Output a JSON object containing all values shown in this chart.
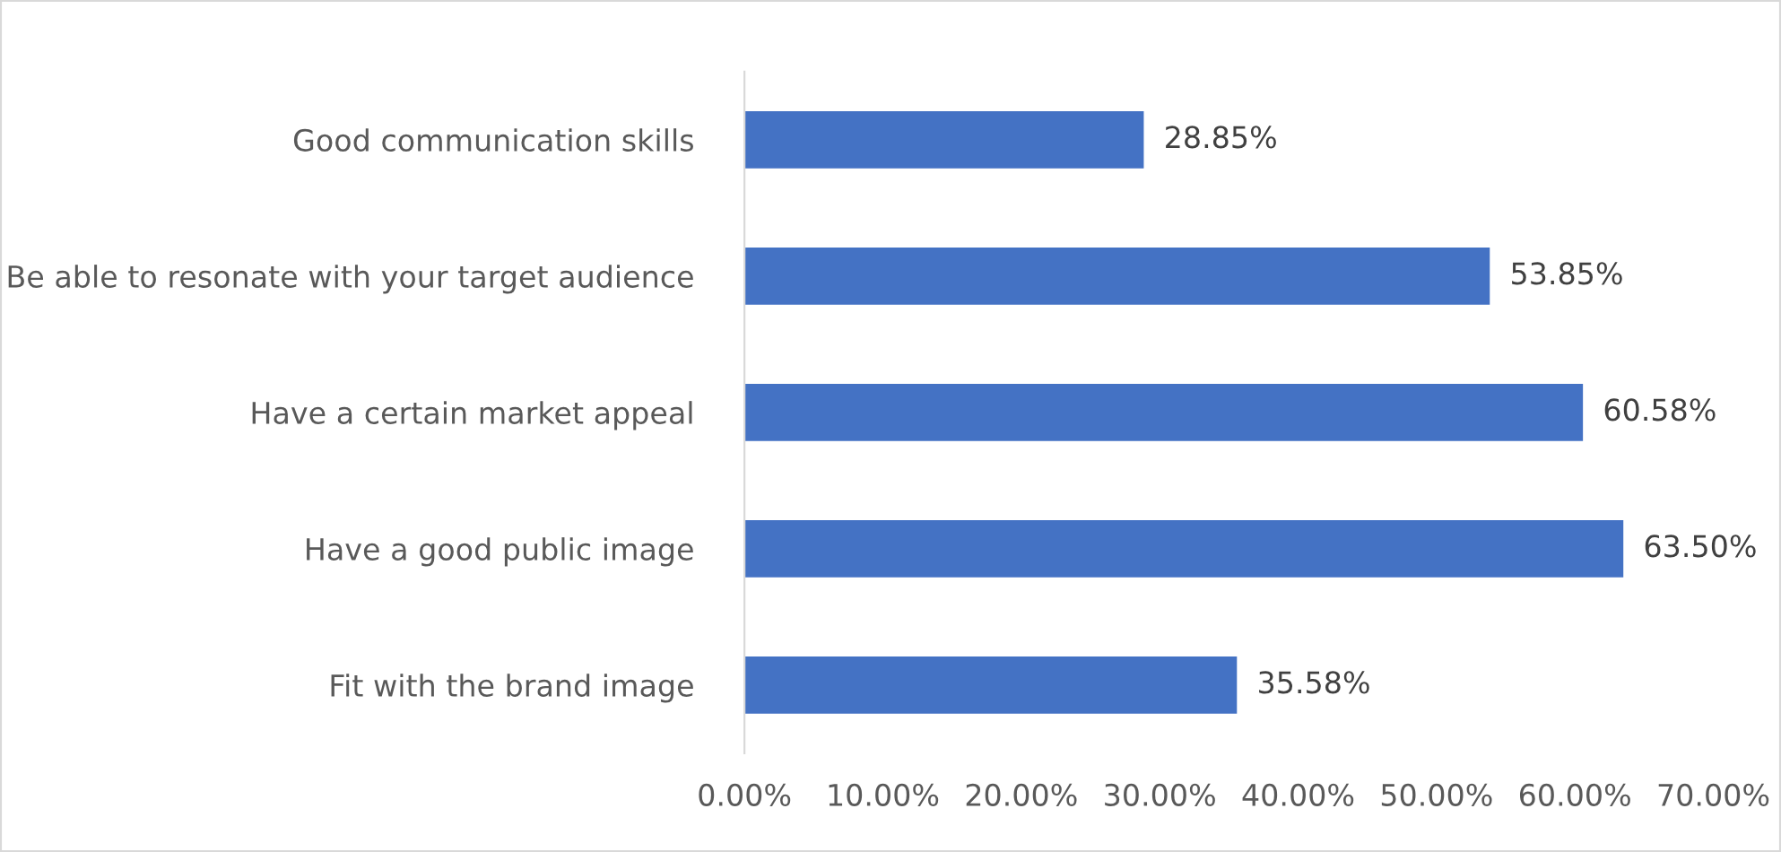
{
  "chart_data": {
    "type": "bar",
    "orientation": "horizontal",
    "categories": [
      "Good communication skills",
      "Be able to resonate with your target audience",
      "Have a certain market appeal",
      "Have a good public image",
      "Fit with the brand image"
    ],
    "values": [
      28.85,
      53.85,
      60.58,
      63.5,
      35.58
    ],
    "value_labels": [
      "28.85%",
      "53.85%",
      "60.58%",
      "63.50%",
      "35.58%"
    ],
    "color": "#4472c4",
    "xlim": [
      0,
      70
    ],
    "xticks": [
      {
        "value": 0,
        "label": "0.00%"
      },
      {
        "value": 10,
        "label": "10.00%"
      },
      {
        "value": 20,
        "label": "20.00%"
      },
      {
        "value": 30,
        "label": "30.00%"
      },
      {
        "value": 40,
        "label": "40.00%"
      },
      {
        "value": 50,
        "label": "50.00%"
      },
      {
        "value": 60,
        "label": "60.00%"
      },
      {
        "value": 70,
        "label": "70.00%"
      }
    ],
    "grid": false,
    "legend": false
  }
}
